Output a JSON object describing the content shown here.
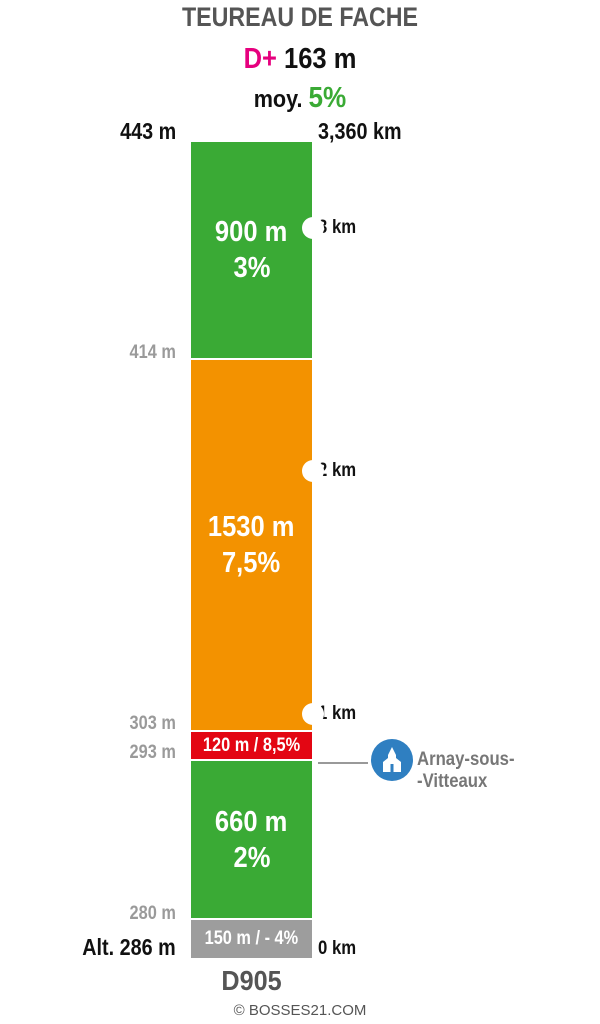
{
  "header": {
    "title": "TEUREAU DE FACHE",
    "elevation_gain_prefix": "D+",
    "elevation_gain_value": "163 m",
    "average_prefix": "moy.",
    "average_value": "5%"
  },
  "altitudes": {
    "top": "443 m",
    "a414": "414 m",
    "a303": "303 m",
    "a293": "293 m",
    "a280": "280 m",
    "start": "Alt. 286 m"
  },
  "distances": {
    "total": "3,360 km",
    "km3": "3 km",
    "km2": "2 km",
    "km1": "1 km",
    "km0": "0 km"
  },
  "segments": [
    {
      "length": "900 m",
      "grade": "3%",
      "grade_value": 3,
      "color": "#3aaa35"
    },
    {
      "length": "1530 m",
      "grade": "7,5%",
      "grade_value": 7.5,
      "color": "#f39200"
    },
    {
      "length": "120 m / 8,5%",
      "grade_value": 8.5,
      "color": "#e30613"
    },
    {
      "length": "660 m",
      "grade": "2%",
      "grade_value": 2,
      "color": "#3aaa35"
    },
    {
      "length": "150 m / - 4%",
      "grade_value": -4,
      "color": "#9d9d9d"
    }
  ],
  "town": {
    "name_line1": "Arnay-sous-",
    "name_line2": "-Vitteaux",
    "icon": "church-icon"
  },
  "road": "D905",
  "copyright": "© BOSSES21.COM"
}
